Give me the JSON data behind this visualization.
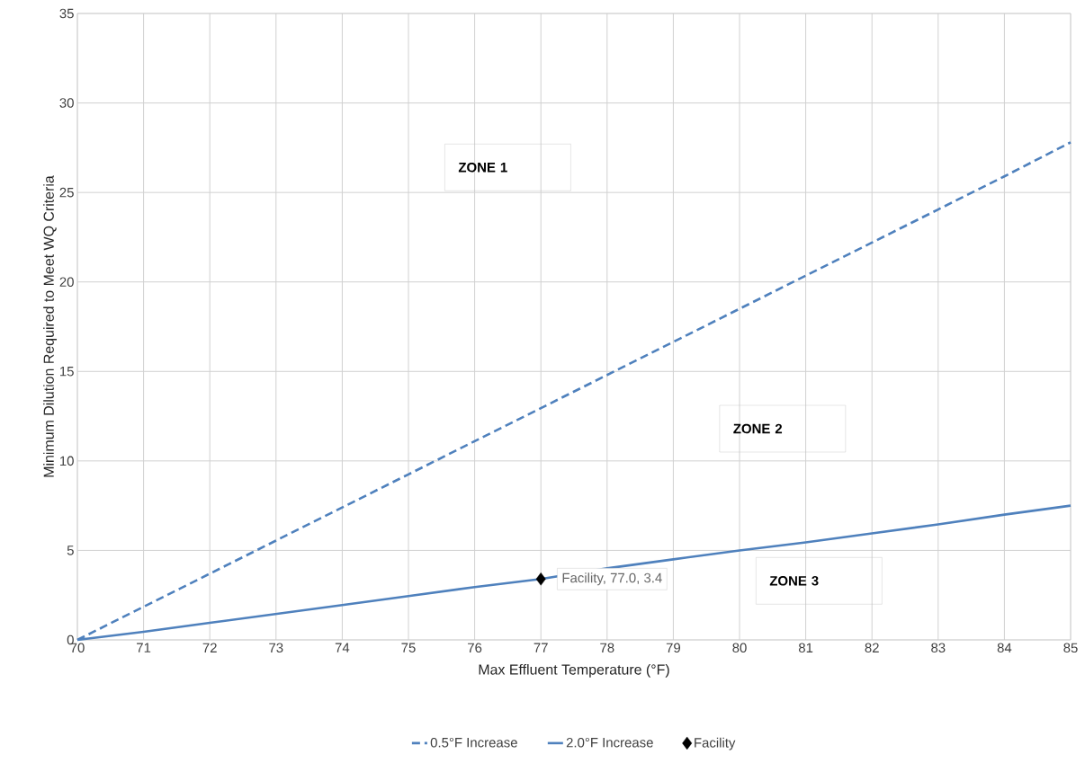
{
  "chart_data": {
    "type": "line",
    "xlabel": "Max Effluent Temperature (°F)",
    "ylabel": "Minimum Dilution Required to Meet WQ Criteria",
    "x": [
      70,
      71,
      72,
      73,
      74,
      75,
      76,
      77,
      78,
      79,
      80,
      81,
      82,
      83,
      84,
      85
    ],
    "series": [
      {
        "name": "0.5°F Increase",
        "color": "#4f81bd",
        "line_style": "dashed",
        "values": [
          0,
          1.85,
          3.7,
          5.55,
          7.4,
          9.25,
          11.1,
          12.95,
          14.8,
          16.65,
          18.5,
          20.35,
          22.2,
          24.05,
          25.9,
          27.8
        ]
      },
      {
        "name": "2.0°F Increase",
        "color": "#4f81bd",
        "line_style": "solid",
        "values": [
          0,
          0.45,
          0.95,
          1.45,
          1.95,
          2.45,
          2.95,
          3.4,
          4.0,
          4.5,
          5.0,
          5.45,
          5.95,
          6.45,
          7.0,
          7.5
        ]
      },
      {
        "name": "Facility",
        "type": "scatter",
        "color": "#000000",
        "marker": "diamond",
        "x": [
          77.0
        ],
        "values": [
          3.4
        ],
        "value_labels": [
          "Facility, 77.0, 3.4"
        ]
      }
    ],
    "annotations": [
      "ZONE 1",
      "ZONE 2",
      "ZONE 3"
    ],
    "xlim": [
      70,
      85
    ],
    "xticks": [
      70,
      71,
      72,
      73,
      74,
      75,
      76,
      77,
      78,
      79,
      80,
      81,
      82,
      83,
      84,
      85
    ],
    "ylim": [
      0,
      35
    ],
    "yticks": [
      0,
      5,
      10,
      15,
      20,
      25,
      30,
      35
    ],
    "grid": true,
    "legend": "bottom"
  }
}
